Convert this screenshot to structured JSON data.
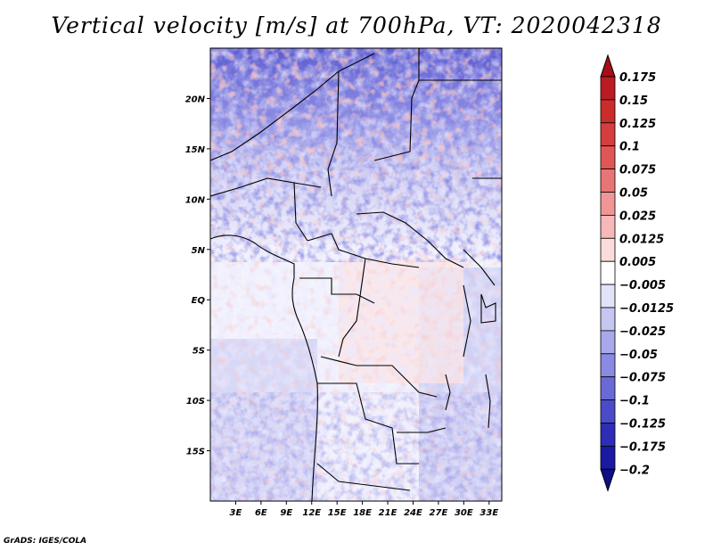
{
  "title": "Vertical velocity [m/s] at 700hPa, VT: 2020042318",
  "footer": "GrADS: IGES/COLA",
  "lat_labels": [
    "20N",
    "15N",
    "10N",
    "5N",
    "EQ",
    "5S",
    "10S",
    "15S"
  ],
  "lat_values": [
    20,
    15,
    10,
    5,
    0,
    -5,
    -10,
    -15
  ],
  "lon_labels": [
    "3E",
    "6E",
    "9E",
    "12E",
    "15E",
    "18E",
    "21E",
    "24E",
    "27E",
    "30E",
    "33E"
  ],
  "lon_values": [
    3,
    6,
    9,
    12,
    15,
    18,
    21,
    24,
    27,
    30,
    33
  ],
  "map_extent": {
    "lon_min": 0,
    "lon_max": 34.5,
    "lat_min": -20,
    "lat_max": 25
  },
  "colorbar": {
    "labels": [
      "0.175",
      "0.15",
      "0.125",
      "0.1",
      "0.075",
      "0.05",
      "0.025",
      "0.0125",
      "0.005",
      "−0.005",
      "−0.0125",
      "−0.025",
      "−0.05",
      "−0.075",
      "−0.1",
      "−0.125",
      "−0.175",
      "−0.2"
    ],
    "colors": [
      "#a50f15",
      "#bb1b22",
      "#cb2d2d",
      "#d63e3e",
      "#e05656",
      "#e87575",
      "#f09696",
      "#f6b8b8",
      "#fbdcdc",
      "#ffffff",
      "#e2e2f8",
      "#c6c6f2",
      "#a8a8ea",
      "#8a8ae2",
      "#6a6ad6",
      "#4b4bc9",
      "#2d2db8",
      "#1a1aa2",
      "#0e0e88"
    ]
  }
}
